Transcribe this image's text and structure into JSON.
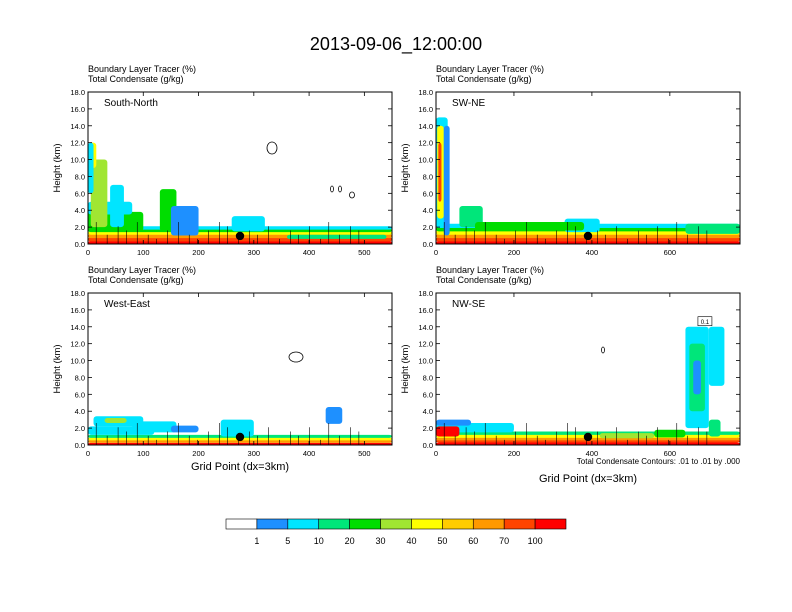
{
  "title": "2013-09-06_12:00:00",
  "x_axis_label": "Grid Point (dx=3km)",
  "contour_note": "Total Condensate Contours: .01 to .01 by .000",
  "colorbar": {
    "labels": [
      "1",
      "5",
      "10",
      "20",
      "30",
      "40",
      "50",
      "60",
      "70",
      "100"
    ],
    "colors": [
      "#ffffff",
      "#1e90ff",
      "#00e5ff",
      "#00e67a",
      "#00dd00",
      "#a0e632",
      "#ffff00",
      "#ffcc00",
      "#ff9900",
      "#ff4400",
      "#ff0000"
    ]
  },
  "chart_data": [
    {
      "type": "heatmap",
      "panel_label": "South-North",
      "subtitle_line1": "Boundary Layer Tracer   (%)",
      "subtitle_line2": "Total Condensate   (g/kg)",
      "ylabel": "Height (km)",
      "xlim": [
        0,
        550
      ],
      "ylim": [
        0,
        18
      ],
      "xticks": [
        "0",
        "100",
        "200",
        "300",
        "400",
        "500"
      ],
      "yticks": [
        "0.0",
        "2.0",
        "4.0",
        "6.0",
        "8.0",
        "10.0",
        "12.0",
        "14.0",
        "16.0",
        "18.0"
      ],
      "site_marker_x": 275
    },
    {
      "type": "heatmap",
      "panel_label": "SW-NE",
      "subtitle_line1": "Boundary Layer Tracer   (%)",
      "subtitle_line2": "Total Condensate   (g/kg)",
      "ylabel": "Height (km)",
      "xlim": [
        0,
        780
      ],
      "ylim": [
        0,
        18
      ],
      "xticks": [
        "0",
        "200",
        "400",
        "600"
      ],
      "yticks": [
        "0.0",
        "2.0",
        "4.0",
        "6.0",
        "8.0",
        "10.0",
        "12.0",
        "14.0",
        "16.0",
        "18.0"
      ],
      "site_marker_x": 390
    },
    {
      "type": "heatmap",
      "panel_label": "West-East",
      "subtitle_line1": "Boundary Layer Tracer   (%)",
      "subtitle_line2": "Total Condensate   (g/kg)",
      "ylabel": "Height (km)",
      "xlim": [
        0,
        550
      ],
      "ylim": [
        0,
        18
      ],
      "xticks": [
        "0",
        "100",
        "200",
        "300",
        "400",
        "500"
      ],
      "yticks": [
        "0.0",
        "2.0",
        "4.0",
        "6.0",
        "8.0",
        "10.0",
        "12.0",
        "14.0",
        "16.0",
        "18.0"
      ],
      "site_marker_x": 275
    },
    {
      "type": "heatmap",
      "panel_label": "NW-SE",
      "subtitle_line1": "Boundary Layer Tracer   (%)",
      "subtitle_line2": "Total Condensate   (g/kg)",
      "ylabel": "Height (km)",
      "xlim": [
        0,
        780
      ],
      "ylim": [
        0,
        18
      ],
      "xticks": [
        "0",
        "200",
        "400",
        "600"
      ],
      "yticks": [
        "0.0",
        "2.0",
        "4.0",
        "6.0",
        "8.0",
        "10.0",
        "12.0",
        "14.0",
        "16.0",
        "18.0"
      ],
      "site_marker_x": 390,
      "annotation": "0.1"
    }
  ]
}
